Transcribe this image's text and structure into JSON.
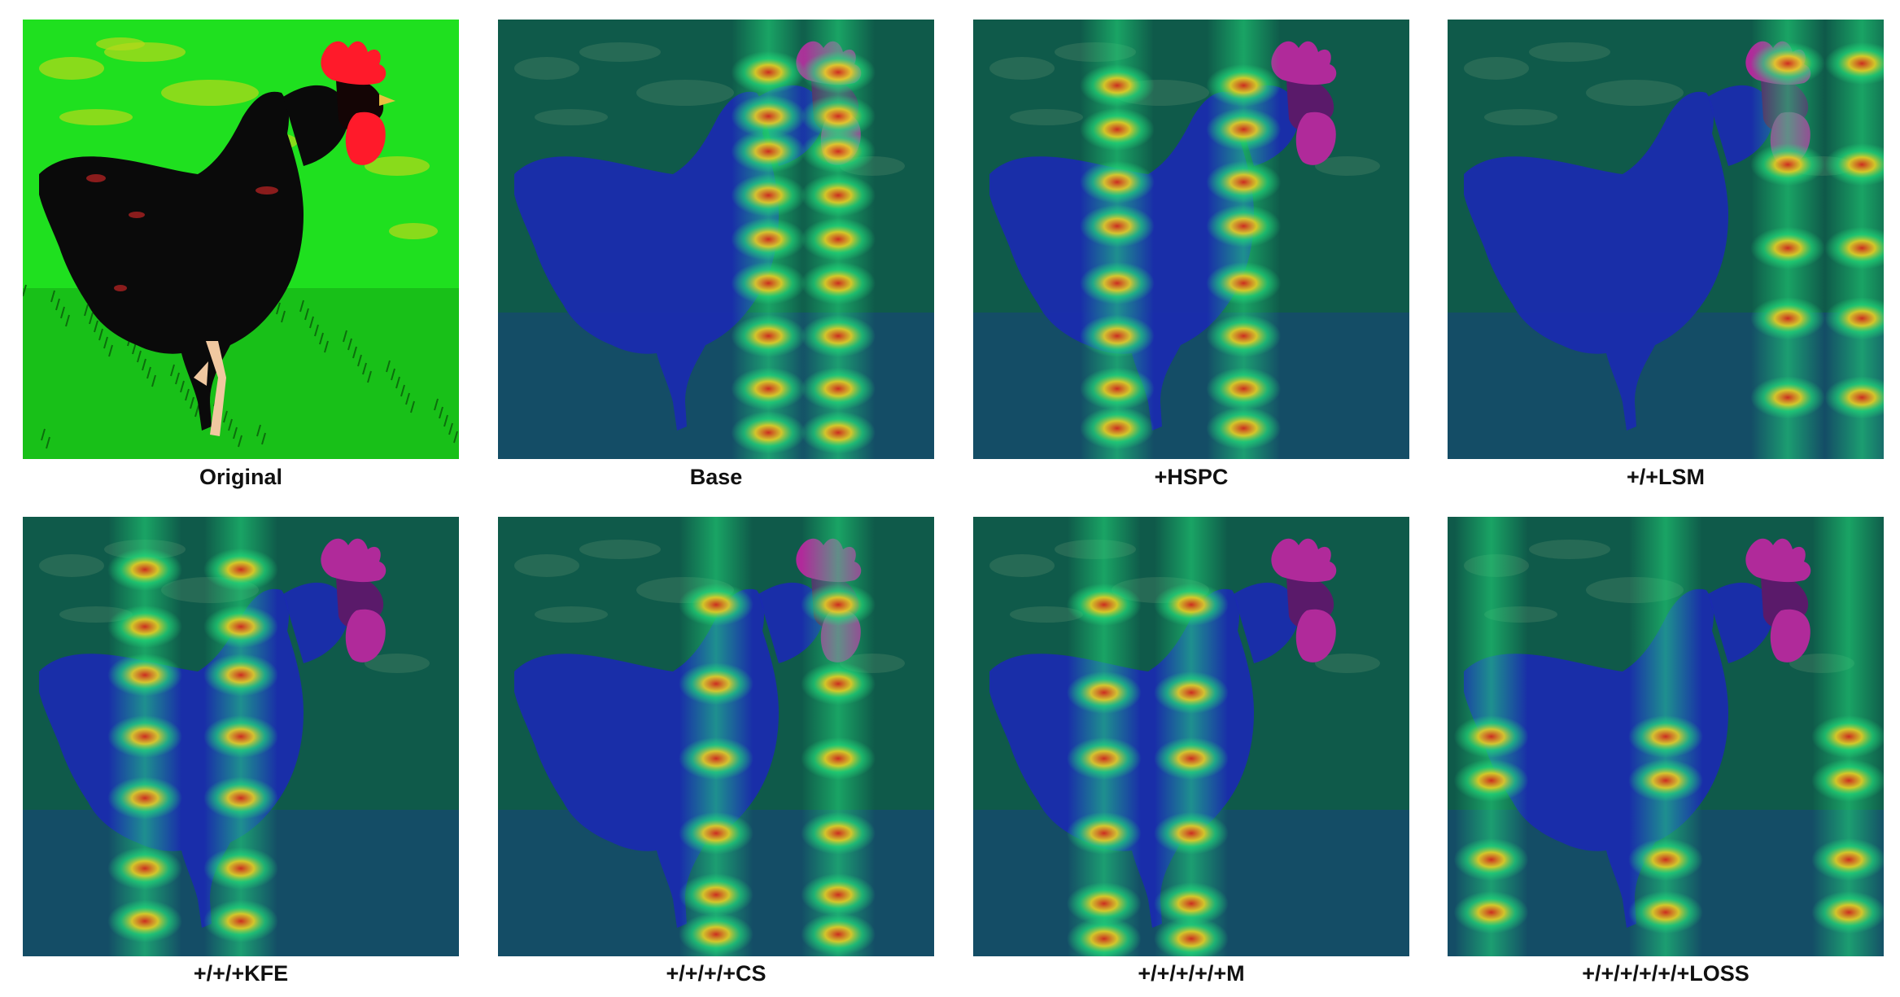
{
  "figure": {
    "panels": [
      {
        "id": "p1",
        "caption": "Original",
        "type": "original"
      },
      {
        "id": "p2",
        "caption": "Base",
        "type": "heatmap",
        "hot_columns": [
          0.62,
          0.78
        ],
        "hot_rows": [
          0.12,
          0.22,
          0.3,
          0.4,
          0.5,
          0.6,
          0.72,
          0.84,
          0.94
        ]
      },
      {
        "id": "p3",
        "caption": "+HSPC",
        "type": "heatmap",
        "hot_columns": [
          0.33,
          0.62
        ],
        "hot_rows": [
          0.15,
          0.25,
          0.37,
          0.47,
          0.6,
          0.72,
          0.84,
          0.93
        ]
      },
      {
        "id": "p4",
        "caption": "+/+LSM",
        "type": "heatmap",
        "hot_columns": [
          0.78,
          0.95
        ],
        "hot_rows": [
          0.1,
          0.33,
          0.52,
          0.68,
          0.86
        ]
      },
      {
        "id": "p5",
        "caption": "+/+/+KFE",
        "type": "heatmap",
        "hot_columns": [
          0.28,
          0.5
        ],
        "hot_rows": [
          0.12,
          0.25,
          0.36,
          0.5,
          0.64,
          0.8,
          0.92
        ]
      },
      {
        "id": "p6",
        "caption": "+/+/+/+CS",
        "type": "heatmap",
        "hot_columns": [
          0.5,
          0.78
        ],
        "hot_rows": [
          0.2,
          0.38,
          0.55,
          0.72,
          0.86,
          0.95
        ]
      },
      {
        "id": "p7",
        "caption": "+/+/+/+/+M",
        "type": "heatmap",
        "hot_columns": [
          0.5,
          0.3
        ],
        "hot_rows": [
          0.2,
          0.4,
          0.55,
          0.72,
          0.88,
          0.96
        ]
      },
      {
        "id": "p8",
        "caption": "+/+/+/+/+/+LOSS",
        "type": "heatmap",
        "hot_columns": [
          0.1,
          0.5,
          0.92
        ],
        "hot_rows": [
          0.5,
          0.6,
          0.78,
          0.9
        ]
      }
    ]
  },
  "colors": {
    "grass": "#1fe01f",
    "rooster_body": "#0a0a0a",
    "comb": "#ff1a2a",
    "heat_base": "#0f5a4a",
    "heat_cool": "#1a2ab0",
    "heat_mid": "#22e07a",
    "heat_hot": "#d4281c",
    "heat_warm": "#f2d020"
  }
}
